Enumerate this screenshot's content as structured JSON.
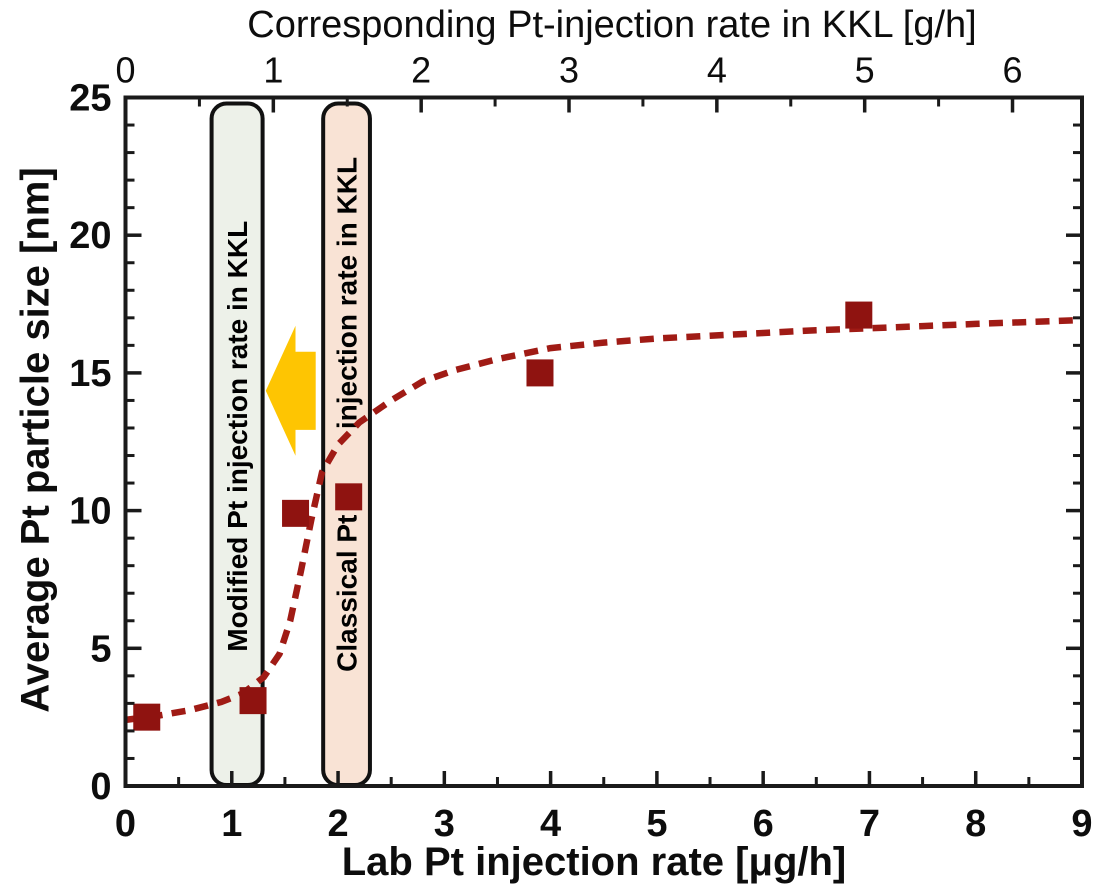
{
  "chart_data": {
    "type": "scatter",
    "title": "",
    "xlabel": "Lab Pt injection rate [μg/h]",
    "ylabel": "Average Pt particle size [nm]",
    "top_xlabel": "Corresponding Pt-injection rate in KKL [g/h]",
    "xlim": [
      0,
      9
    ],
    "ylim": [
      0,
      25
    ],
    "top_xlim": [
      0,
      6.47
    ],
    "x_ticks": [
      0,
      1,
      2,
      3,
      4,
      5,
      6,
      7,
      8,
      9
    ],
    "x_minor_step": 0.5,
    "y_ticks": [
      0,
      5,
      10,
      15,
      20,
      25
    ],
    "y_minor_step": 1,
    "top_x_ticks": [
      0,
      1,
      2,
      3,
      4,
      5,
      6
    ],
    "top_x_minor_step": 0.5,
    "grid": false,
    "legend": "none",
    "points": [
      [
        0.2,
        2.5
      ],
      [
        1.2,
        3.1
      ],
      [
        1.6,
        9.9
      ],
      [
        2.1,
        10.5
      ],
      [
        3.9,
        15.0
      ],
      [
        6.9,
        17.1
      ]
    ],
    "trend_dashed": [
      [
        0,
        2.4
      ],
      [
        0.3,
        2.55
      ],
      [
        0.6,
        2.75
      ],
      [
        0.9,
        3.05
      ],
      [
        1.1,
        3.35
      ],
      [
        1.3,
        3.95
      ],
      [
        1.45,
        4.8
      ],
      [
        1.55,
        6.0
      ],
      [
        1.65,
        7.8
      ],
      [
        1.75,
        9.7
      ],
      [
        1.85,
        11.4
      ],
      [
        2.0,
        12.4
      ],
      [
        2.2,
        13.2
      ],
      [
        2.5,
        14.0
      ],
      [
        2.8,
        14.7
      ],
      [
        3.1,
        15.1
      ],
      [
        3.5,
        15.5
      ],
      [
        4.0,
        15.9
      ],
      [
        4.5,
        16.1
      ],
      [
        5.0,
        16.25
      ],
      [
        5.5,
        16.35
      ],
      [
        6.0,
        16.45
      ],
      [
        6.5,
        16.55
      ],
      [
        7.0,
        16.62
      ],
      [
        7.5,
        16.7
      ],
      [
        8.0,
        16.78
      ],
      [
        8.5,
        16.85
      ],
      [
        9.0,
        16.92
      ]
    ],
    "colors": {
      "marker": "#8F1310",
      "trend": "#A01B15",
      "axis": "#1a1a1a",
      "band_border": "#111111"
    },
    "bands": [
      {
        "id": "modified",
        "x0": 0.81,
        "x1": 1.29,
        "fill": "#EDF1E9",
        "labels": [
          {
            "text": "Modified Pt injection rate in KKL",
            "y_center": 12.7
          }
        ]
      },
      {
        "id": "classical",
        "x0": 1.86,
        "x1": 2.3,
        "fill": "#F9E3D5",
        "labels": [
          {
            "text": "injection rate in KKL",
            "y_center": 17.9
          },
          {
            "text": "Classical Pt",
            "y_center": 7.0
          }
        ]
      }
    ],
    "arrow": {
      "direction": "left",
      "color": "#FEC502",
      "tip_x": 1.32,
      "head_x": 1.6,
      "tail_x": 1.79,
      "y_center": 14.35,
      "head_half_height": 2.36,
      "shaft_half_height": 1.42
    }
  }
}
